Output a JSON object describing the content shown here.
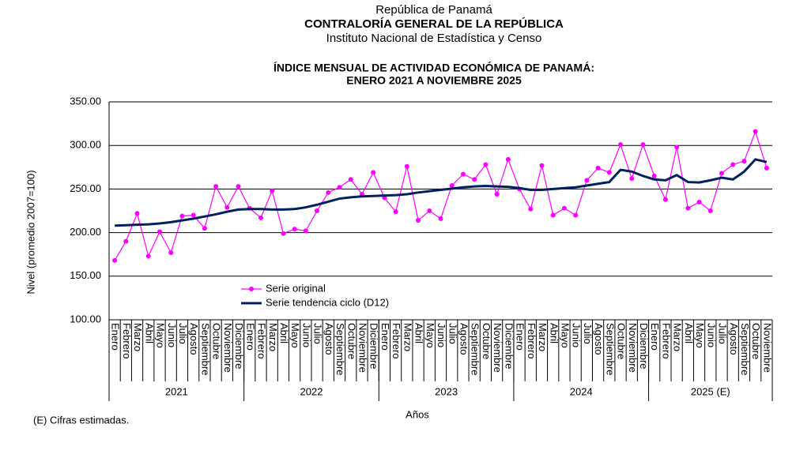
{
  "header": {
    "line1": "República de Panamá",
    "line2": "CONTRALORÍA GENERAL DE LA REPÚBLICA",
    "line3": "Instituto Nacional de Estadística y Censo"
  },
  "chart_data": {
    "type": "line",
    "title": [
      "ÍNDICE MENSUAL DE ACTIVIDAD ECONÓMICA DE PANAMÁ:",
      "ENERO 2021 A NOVIEMBRE 2025"
    ],
    "y_label": "Nivel (promedio 2007=100)",
    "x_label": "Años",
    "categories": [
      "Enero",
      "Febrero",
      "Marzo",
      "Abril",
      "Mayo",
      "Junio",
      "Julio",
      "Agosto",
      "Septiembre",
      "Octubre",
      "Noviembre",
      "Diciembre",
      "Enero",
      "Febrero",
      "Marzo",
      "Abril",
      "Mayo",
      "Junio",
      "Julio",
      "Agosto",
      "Septiembre",
      "Octubre",
      "Noviembre",
      "Diciembre",
      "Enero",
      "Febrero",
      "Marzo",
      "Abril",
      "Mayo",
      "Junio",
      "Julio",
      "Agosto",
      "Septiembre",
      "Octubre",
      "Noviembre",
      "Diciembre",
      "Enero",
      "Febrero",
      "Marzo",
      "Abril",
      "Mayo",
      "Junio",
      "Julio",
      "Agosto",
      "Septiembre",
      "Octubre",
      "Noviembre",
      "Diciembre",
      "Enero",
      "Febrero",
      "Marzo",
      "Abril",
      "Mayo",
      "Junio",
      "Julio",
      "Agosto",
      "Septiembre",
      "Octubre",
      "Noviembre"
    ],
    "years": [
      "2021",
      "2022",
      "2023",
      "2024",
      "2025 (E)"
    ],
    "series": [
      {
        "name": "Serie original",
        "color": "#ff00ff",
        "markers": true,
        "values": [
          168,
          190,
          222,
          173,
          201,
          177,
          219,
          220,
          205,
          253,
          229,
          253,
          228,
          217,
          248,
          199,
          204,
          202,
          225,
          246,
          252,
          261,
          244,
          269,
          240,
          224,
          276,
          214,
          225,
          216,
          254,
          267,
          261,
          278,
          244,
          284,
          250,
          227,
          277,
          220,
          228,
          220,
          260,
          274,
          269,
          301,
          262,
          301,
          265,
          238,
          298,
          228,
          235,
          225,
          268,
          278,
          282,
          316,
          274
        ]
      },
      {
        "name": "Serie tendencia ciclo (D12)",
        "color": "#002060",
        "markers": false,
        "values": [
          208,
          208.5,
          209,
          209.5,
          210.5,
          212,
          214,
          216,
          218.5,
          221,
          224,
          226.5,
          227,
          227,
          226.5,
          226.5,
          227,
          229,
          232,
          235.5,
          239,
          240.5,
          241.5,
          242,
          242.5,
          243,
          244,
          246,
          247.5,
          249,
          250.5,
          252,
          253,
          253.5,
          253,
          252.5,
          251,
          249,
          249,
          250,
          251,
          252,
          254,
          256,
          258,
          272,
          270,
          265,
          261,
          260,
          266,
          258,
          257.5,
          260,
          263,
          261,
          270,
          284,
          281
        ]
      }
    ],
    "ylim": [
      100,
      350
    ],
    "yticks": [
      {
        "value": 100,
        "label": "100.00"
      },
      {
        "value": 150,
        "label": "150.00"
      },
      {
        "value": 200,
        "label": "200.00"
      },
      {
        "value": 250,
        "label": "250.00"
      },
      {
        "value": 300,
        "label": "300.00"
      },
      {
        "value": 350,
        "label": "350.00"
      }
    ],
    "grid": true
  },
  "note": "(E) Cifras estimadas."
}
